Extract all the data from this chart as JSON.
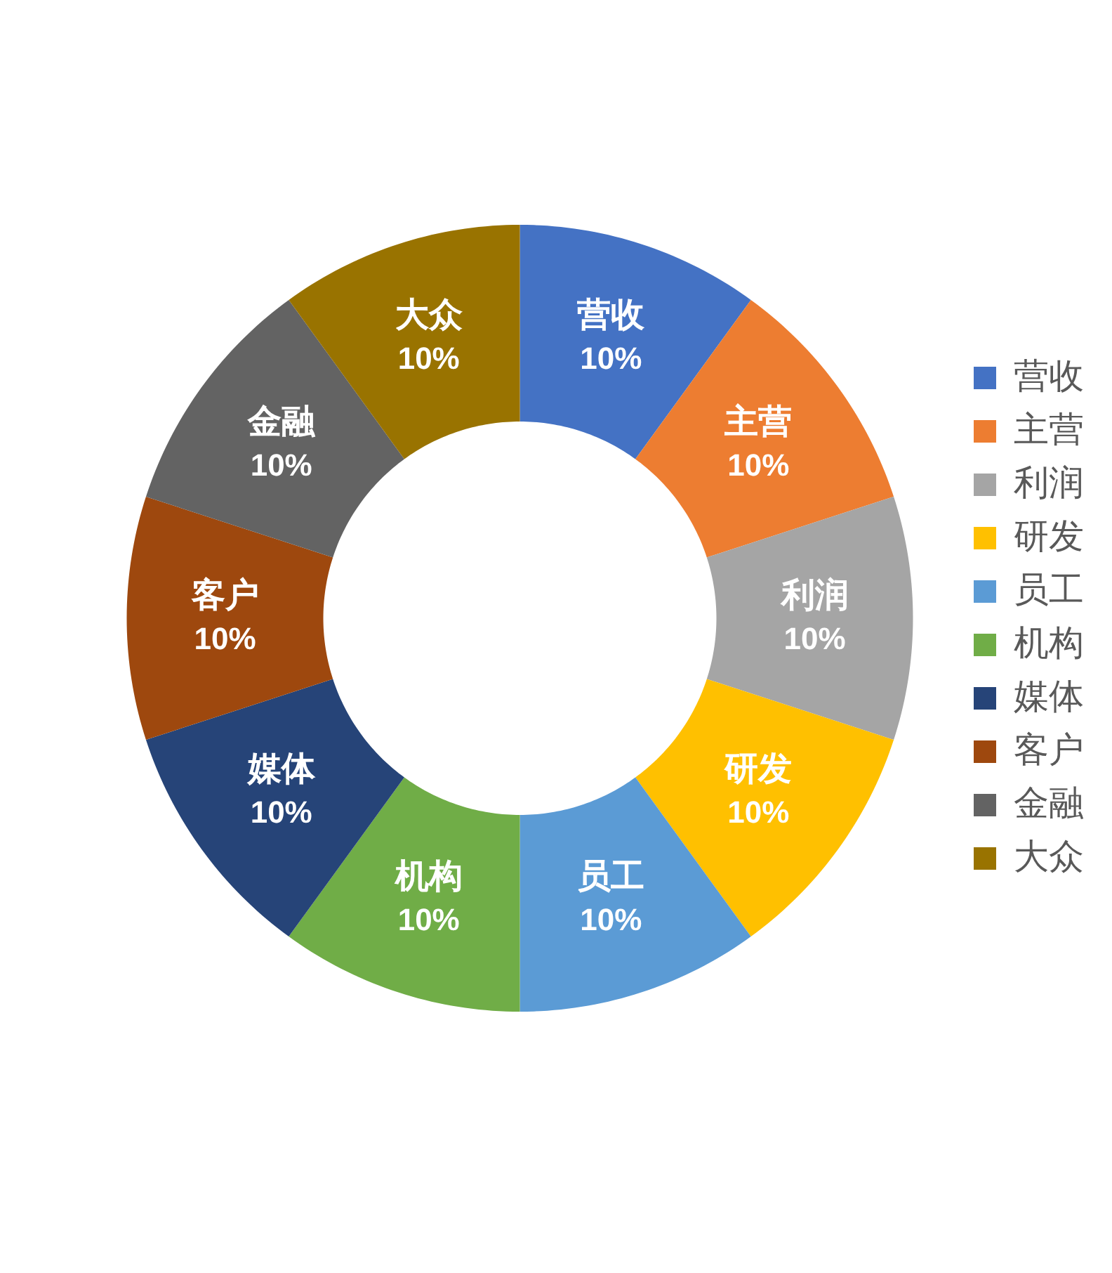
{
  "chart_data": {
    "type": "donut",
    "categories": [
      "营收",
      "主营",
      "利润",
      "研发",
      "员工",
      "机构",
      "媒体",
      "客户",
      "金融",
      "大众"
    ],
    "values": [
      10,
      10,
      10,
      10,
      10,
      10,
      10,
      10,
      10,
      10
    ],
    "colors": [
      "#4472c4",
      "#ed7d31",
      "#a5a5a5",
      "#ffc000",
      "#5b9bd5",
      "#70ad47",
      "#264478",
      "#9e480e",
      "#636363",
      "#997300"
    ],
    "value_labels": [
      "10%",
      "10%",
      "10%",
      "10%",
      "10%",
      "10%",
      "10%",
      "10%",
      "10%",
      "10%"
    ],
    "legend": "right"
  }
}
